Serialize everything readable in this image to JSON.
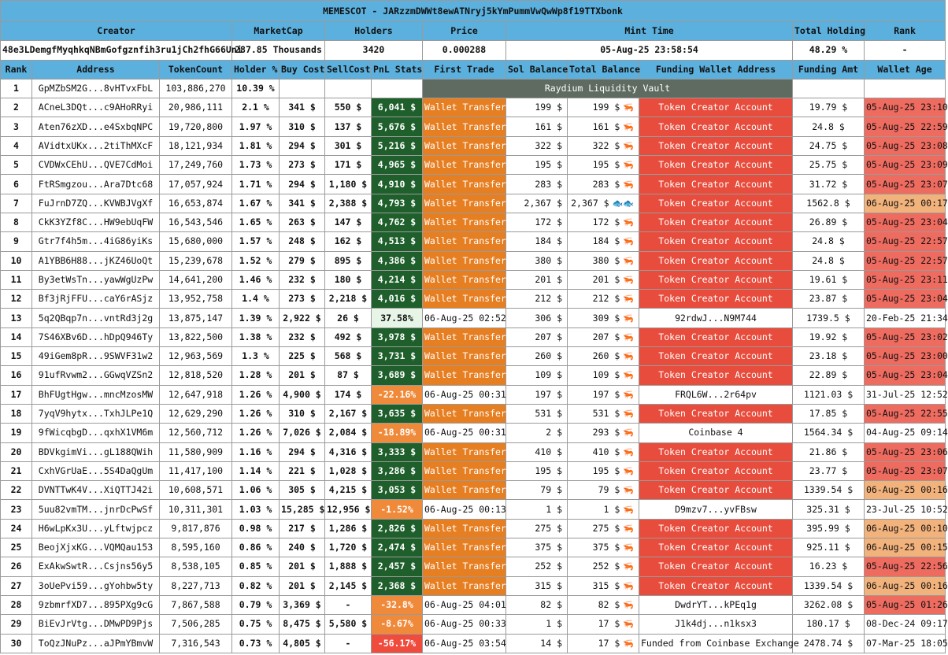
{
  "title": "MEMESCOT - JARzzmDWWt8ewATNryj5kYmPummVwQwWp8f19TTXbonk",
  "summary_headers": {
    "creator": "Creator",
    "marketcap": "MarketCap",
    "holders": "Holders",
    "price": "Price",
    "mint_time": "Mint Time",
    "total_holding": "Total Holding",
    "rank": "Rank"
  },
  "summary": {
    "creator": "48e3LDemgfMyqhkqNBmGofgznfih3ru1jCh2fhG66Uni",
    "marketcap": "287.85 Thousands",
    "holders": "3420",
    "price": "0.000288",
    "mint_time": "05-Aug-25 23:58:54",
    "total_holding": "48.29 %",
    "rank": "-"
  },
  "columns": [
    "Rank",
    "Address",
    "TokenCount",
    "Holder %",
    "Buy Cost",
    "SellCost",
    "PnL Stats",
    "First Trade",
    "Sol Balance",
    "Total Balance",
    "Funding Wallet Address",
    "Funding Amt",
    "Wallet Age"
  ],
  "vault_label": "Raydium Liquidity Vault",
  "icons": {
    "shrimp": "shrimp-icon",
    "fish": "fish-icon"
  },
  "colors": {
    "header": "#5bb0dd",
    "pnl_positive": "#1e5f2b",
    "pnl_negative": "#f08a3b",
    "wallet_transfer": "#e67e22",
    "token_creator": "#e74c3c",
    "age_recent": "#ee6b60",
    "age_next_day": "#f2b27c",
    "vault": "#5f6b61"
  },
  "rows": [
    {
      "rank": "1",
      "address": "GpMZbSM2G...8vHTvxFbL",
      "tokens": "103,886,270",
      "holder": "10.39 %",
      "vault": true
    },
    {
      "rank": "2",
      "address": "ACneL3DQt...c9AHoRRyi",
      "tokens": "20,986,111",
      "holder": "2.1 %",
      "buy": "341 $",
      "sell": "550 $",
      "pnl": "6,041 $",
      "pnl_style": "pos",
      "first": "Wallet Transfer",
      "sol": "199 $",
      "total": "199 $",
      "icon": "shrimp",
      "funding": "Token Creator Account",
      "funding_style": "tca",
      "amt": "19.79 $",
      "age": "05-Aug-25 23:10",
      "age_style": "red"
    },
    {
      "rank": "3",
      "address": "Aten76zXD...e4SxbqNPC",
      "tokens": "19,720,800",
      "holder": "1.97 %",
      "buy": "310 $",
      "sell": "137 $",
      "pnl": "5,676 $",
      "pnl_style": "pos",
      "first": "Wallet Transfer",
      "sol": "161 $",
      "total": "161 $",
      "icon": "shrimp",
      "funding": "Token Creator Account",
      "funding_style": "tca",
      "amt": "24.8 $",
      "age": "05-Aug-25 22:59",
      "age_style": "red"
    },
    {
      "rank": "4",
      "address": "AVidtxUKx...2tiThMXcF",
      "tokens": "18,121,934",
      "holder": "1.81 %",
      "buy": "294 $",
      "sell": "301 $",
      "pnl": "5,216 $",
      "pnl_style": "pos",
      "first": "Wallet Transfer",
      "sol": "322 $",
      "total": "322 $",
      "icon": "shrimp",
      "funding": "Token Creator Account",
      "funding_style": "tca",
      "amt": "24.75 $",
      "age": "05-Aug-25 23:08",
      "age_style": "red"
    },
    {
      "rank": "5",
      "address": "CVDWxCEhU...QVE7CdMoi",
      "tokens": "17,249,760",
      "holder": "1.73 %",
      "buy": "273 $",
      "sell": "171 $",
      "pnl": "4,965 $",
      "pnl_style": "pos",
      "first": "Wallet Transfer",
      "sol": "195 $",
      "total": "195 $",
      "icon": "shrimp",
      "funding": "Token Creator Account",
      "funding_style": "tca",
      "amt": "25.75 $",
      "age": "05-Aug-25 23:09",
      "age_style": "red"
    },
    {
      "rank": "6",
      "address": "FtRSmgzou...Ara7Dtc68",
      "tokens": "17,057,924",
      "holder": "1.71 %",
      "buy": "294 $",
      "sell": "1,180 $",
      "pnl": "4,910 $",
      "pnl_style": "pos",
      "first": "Wallet Transfer",
      "sol": "283 $",
      "total": "283 $",
      "icon": "shrimp",
      "funding": "Token Creator Account",
      "funding_style": "tca",
      "amt": "31.72 $",
      "age": "05-Aug-25 23:07",
      "age_style": "red"
    },
    {
      "rank": "7",
      "address": "FuJrnD7ZQ...KVWBJVgXf",
      "tokens": "16,653,874",
      "holder": "1.67 %",
      "buy": "341 $",
      "sell": "2,388 $",
      "pnl": "4,793 $",
      "pnl_style": "pos",
      "first": "Wallet Transfer",
      "sol": "2,367 $",
      "total": "2,367 $",
      "icon": "fish",
      "funding": "Token Creator Account",
      "funding_style": "tca",
      "amt": "1562.8 $",
      "age": "06-Aug-25 00:17",
      "age_style": "orange"
    },
    {
      "rank": "8",
      "address": "CkK3YZf8C...HW9ebUqFW",
      "tokens": "16,543,546",
      "holder": "1.65 %",
      "buy": "263 $",
      "sell": "147 $",
      "pnl": "4,762 $",
      "pnl_style": "pos",
      "first": "Wallet Transfer",
      "sol": "172 $",
      "total": "172 $",
      "icon": "shrimp",
      "funding": "Token Creator Account",
      "funding_style": "tca",
      "amt": "26.89 $",
      "age": "05-Aug-25 23:04",
      "age_style": "red"
    },
    {
      "rank": "9",
      "address": "Gtr7f4h5m...4iG86yiKs",
      "tokens": "15,680,000",
      "holder": "1.57 %",
      "buy": "248 $",
      "sell": "162 $",
      "pnl": "4,513 $",
      "pnl_style": "pos",
      "first": "Wallet Transfer",
      "sol": "184 $",
      "total": "184 $",
      "icon": "shrimp",
      "funding": "Token Creator Account",
      "funding_style": "tca",
      "amt": "24.8 $",
      "age": "05-Aug-25 22:57",
      "age_style": "red"
    },
    {
      "rank": "10",
      "address": "A1YBB6H88...jKZ46UoQt",
      "tokens": "15,239,678",
      "holder": "1.52 %",
      "buy": "279 $",
      "sell": "895 $",
      "pnl": "4,386 $",
      "pnl_style": "pos",
      "first": "Wallet Transfer",
      "sol": "380 $",
      "total": "380 $",
      "icon": "shrimp",
      "funding": "Token Creator Account",
      "funding_style": "tca",
      "amt": "24.8 $",
      "age": "05-Aug-25 22:57",
      "age_style": "red"
    },
    {
      "rank": "11",
      "address": "By3etWsTn...yawWgUzPw",
      "tokens": "14,641,200",
      "holder": "1.46 %",
      "buy": "232 $",
      "sell": "180 $",
      "pnl": "4,214 $",
      "pnl_style": "pos",
      "first": "Wallet Transfer",
      "sol": "201 $",
      "total": "201 $",
      "icon": "shrimp",
      "funding": "Token Creator Account",
      "funding_style": "tca",
      "amt": "19.61 $",
      "age": "05-Aug-25 23:11",
      "age_style": "red"
    },
    {
      "rank": "12",
      "address": "Bf3jRjFFU...caY6rASjz",
      "tokens": "13,952,758",
      "holder": "1.4 %",
      "buy": "273 $",
      "sell": "2,218 $",
      "pnl": "4,016 $",
      "pnl_style": "pos",
      "first": "Wallet Transfer",
      "sol": "212 $",
      "total": "212 $",
      "icon": "shrimp",
      "funding": "Token Creator Account",
      "funding_style": "tca",
      "amt": "23.87 $",
      "age": "05-Aug-25 23:04",
      "age_style": "red"
    },
    {
      "rank": "13",
      "address": "5q2QBqp7n...vntRd3j2g",
      "tokens": "13,875,147",
      "holder": "1.39 %",
      "buy": "2,922 $",
      "sell": "26 $",
      "pnl": "37.58%",
      "pnl_style": "soft",
      "first": "06-Aug-25 02:52",
      "first_plain": true,
      "sol": "306 $",
      "total": "309 $",
      "icon": "shrimp",
      "funding": "92rdwJ...N9M744",
      "funding_style": "plain",
      "amt": "1739.5 $",
      "age": "20-Feb-25 21:34",
      "age_style": "none"
    },
    {
      "rank": "14",
      "address": "7S46XBv6D...hDpQ946Ty",
      "tokens": "13,822,500",
      "holder": "1.38 %",
      "buy": "232 $",
      "sell": "492 $",
      "pnl": "3,978 $",
      "pnl_style": "pos",
      "first": "Wallet Transfer",
      "sol": "207 $",
      "total": "207 $",
      "icon": "shrimp",
      "funding": "Token Creator Account",
      "funding_style": "tca",
      "amt": "19.92 $",
      "age": "05-Aug-25 23:02",
      "age_style": "red"
    },
    {
      "rank": "15",
      "address": "49iGem8pR...9SWVF31w2",
      "tokens": "12,963,569",
      "holder": "1.3 %",
      "buy": "225 $",
      "sell": "568 $",
      "pnl": "3,731 $",
      "pnl_style": "pos",
      "first": "Wallet Transfer",
      "sol": "260 $",
      "total": "260 $",
      "icon": "shrimp",
      "funding": "Token Creator Account",
      "funding_style": "tca",
      "amt": "23.18 $",
      "age": "05-Aug-25 23:00",
      "age_style": "red"
    },
    {
      "rank": "16",
      "address": "91ufRvwm2...GGwqVZSn2",
      "tokens": "12,818,520",
      "holder": "1.28 %",
      "buy": "201 $",
      "sell": "87 $",
      "pnl": "3,689 $",
      "pnl_style": "pos",
      "first": "Wallet Transfer",
      "sol": "109 $",
      "total": "109 $",
      "icon": "shrimp",
      "funding": "Token Creator Account",
      "funding_style": "tca",
      "amt": "22.89 $",
      "age": "05-Aug-25 23:04",
      "age_style": "red"
    },
    {
      "rank": "17",
      "address": "BhFUgtHgw...mncMzosMW",
      "tokens": "12,647,918",
      "holder": "1.26 %",
      "buy": "4,900 $",
      "sell": "174 $",
      "pnl": "-22.16%",
      "pnl_style": "neg",
      "first": "06-Aug-25 00:31",
      "first_plain": true,
      "sol": "197 $",
      "total": "197 $",
      "icon": "shrimp",
      "funding": "FRQL6W...2r64pv",
      "funding_style": "plain",
      "amt": "1121.03 $",
      "age": "31-Jul-25 12:52",
      "age_style": "none"
    },
    {
      "rank": "18",
      "address": "7yqV9hytx...TxhJLPe1Q",
      "tokens": "12,629,290",
      "holder": "1.26 %",
      "buy": "310 $",
      "sell": "2,167 $",
      "pnl": "3,635 $",
      "pnl_style": "pos",
      "first": "Wallet Transfer",
      "sol": "531 $",
      "total": "531 $",
      "icon": "shrimp",
      "funding": "Token Creator Account",
      "funding_style": "tca",
      "amt": "17.85 $",
      "age": "05-Aug-25 22:55",
      "age_style": "red"
    },
    {
      "rank": "19",
      "address": "9fWicqbgD...qxhX1VM6m",
      "tokens": "12,560,712",
      "holder": "1.26 %",
      "buy": "7,026 $",
      "sell": "2,084 $",
      "pnl": "-18.89%",
      "pnl_style": "neg",
      "first": "06-Aug-25 00:31",
      "first_plain": true,
      "sol": "2 $",
      "total": "293 $",
      "icon": "shrimp",
      "funding": "Coinbase 4",
      "funding_style": "plain",
      "amt": "1564.34 $",
      "age": "04-Aug-25 09:14",
      "age_style": "none"
    },
    {
      "rank": "20",
      "address": "BDVkgimVi...gL188QWih",
      "tokens": "11,580,909",
      "holder": "1.16 %",
      "buy": "294 $",
      "sell": "4,316 $",
      "pnl": "3,333 $",
      "pnl_style": "pos",
      "first": "Wallet Transfer",
      "sol": "410 $",
      "total": "410 $",
      "icon": "shrimp",
      "funding": "Token Creator Account",
      "funding_style": "tca",
      "amt": "21.86 $",
      "age": "05-Aug-25 23:06",
      "age_style": "red"
    },
    {
      "rank": "21",
      "address": "CxhVGrUaE...5S4DaQgUm",
      "tokens": "11,417,100",
      "holder": "1.14 %",
      "buy": "221 $",
      "sell": "1,028 $",
      "pnl": "3,286 $",
      "pnl_style": "pos",
      "first": "Wallet Transfer",
      "sol": "195 $",
      "total": "195 $",
      "icon": "shrimp",
      "funding": "Token Creator Account",
      "funding_style": "tca",
      "amt": "23.77 $",
      "age": "05-Aug-25 23:07",
      "age_style": "red"
    },
    {
      "rank": "22",
      "address": "DVNTTwK4V...XiQTTJ42i",
      "tokens": "10,608,571",
      "holder": "1.06 %",
      "buy": "305 $",
      "sell": "4,215 $",
      "pnl": "3,053 $",
      "pnl_style": "pos",
      "first": "Wallet Transfer",
      "sol": "79 $",
      "total": "79 $",
      "icon": "shrimp",
      "funding": "Token Creator Account",
      "funding_style": "tca",
      "amt": "1339.54 $",
      "age": "06-Aug-25 00:16",
      "age_style": "orange"
    },
    {
      "rank": "23",
      "address": "5uu82vmTM...jnrDcPwSf",
      "tokens": "10,311,301",
      "holder": "1.03 %",
      "buy": "15,285 $",
      "sell": "12,956 $",
      "pnl": "-1.52%",
      "pnl_style": "neg",
      "first": "06-Aug-25 00:13",
      "first_plain": true,
      "sol": "1 $",
      "total": "1 $",
      "icon": "shrimp",
      "funding": "D9mzv7...yvFBsw",
      "funding_style": "plain",
      "amt": "325.31 $",
      "age": "23-Jul-25 10:52",
      "age_style": "none"
    },
    {
      "rank": "24",
      "address": "H6wLpKx3U...yLftwjpcz",
      "tokens": "9,817,876",
      "holder": "0.98 %",
      "buy": "217 $",
      "sell": "1,286 $",
      "pnl": "2,826 $",
      "pnl_style": "pos",
      "first": "Wallet Transfer",
      "sol": "275 $",
      "total": "275 $",
      "icon": "shrimp",
      "funding": "Token Creator Account",
      "funding_style": "tca",
      "amt": "395.99 $",
      "age": "06-Aug-25 00:10",
      "age_style": "orange"
    },
    {
      "rank": "25",
      "address": "BeojXjxKG...VQMQau153",
      "tokens": "8,595,160",
      "holder": "0.86 %",
      "buy": "240 $",
      "sell": "1,720 $",
      "pnl": "2,474 $",
      "pnl_style": "pos",
      "first": "Wallet Transfer",
      "sol": "375 $",
      "total": "375 $",
      "icon": "shrimp",
      "funding": "Token Creator Account",
      "funding_style": "tca",
      "amt": "925.11 $",
      "age": "06-Aug-25 00:15",
      "age_style": "orange"
    },
    {
      "rank": "26",
      "address": "ExAkwSwtR...Csjns56y5",
      "tokens": "8,538,105",
      "holder": "0.85 %",
      "buy": "201 $",
      "sell": "1,888 $",
      "pnl": "2,457 $",
      "pnl_style": "pos",
      "first": "Wallet Transfer",
      "sol": "252 $",
      "total": "252 $",
      "icon": "shrimp",
      "funding": "Token Creator Account",
      "funding_style": "tca",
      "amt": "16.23 $",
      "age": "05-Aug-25 22:56",
      "age_style": "red"
    },
    {
      "rank": "27",
      "address": "3oUePvi59...gYohbw5ty",
      "tokens": "8,227,713",
      "holder": "0.82 %",
      "buy": "201 $",
      "sell": "2,145 $",
      "pnl": "2,368 $",
      "pnl_style": "pos",
      "first": "Wallet Transfer",
      "sol": "315 $",
      "total": "315 $",
      "icon": "shrimp",
      "funding": "Token Creator Account",
      "funding_style": "tca",
      "amt": "1339.54 $",
      "age": "06-Aug-25 00:16",
      "age_style": "orange"
    },
    {
      "rank": "28",
      "address": "9zbmrfXD7...895PXg9cG",
      "tokens": "7,867,588",
      "holder": "0.79 %",
      "buy": "3,369 $",
      "sell": "-",
      "pnl": "-32.8%",
      "pnl_style": "neg",
      "first": "06-Aug-25 04:01",
      "first_plain": true,
      "sol": "82 $",
      "total": "82 $",
      "icon": "shrimp",
      "funding": "DwdrYT...kPEq1g",
      "funding_style": "plain",
      "amt": "3262.08 $",
      "age": "05-Aug-25 01:26",
      "age_style": "red"
    },
    {
      "rank": "29",
      "address": "BiEvJrVtg...DMwPD9Pjs",
      "tokens": "7,506,285",
      "holder": "0.75 %",
      "buy": "8,475 $",
      "sell": "5,580 $",
      "pnl": "-8.67%",
      "pnl_style": "neg",
      "first": "06-Aug-25 00:33",
      "first_plain": true,
      "sol": "1 $",
      "total": "17 $",
      "icon": "shrimp",
      "funding": "J1k4dj...n1ksx3",
      "funding_style": "plain",
      "amt": "180.17 $",
      "age": "08-Dec-24 09:17",
      "age_style": "none"
    },
    {
      "rank": "30",
      "address": "ToQzJNuPz...aJPmYBmvW",
      "tokens": "7,316,543",
      "holder": "0.73 %",
      "buy": "4,805 $",
      "sell": "-",
      "pnl": "-56.17%",
      "pnl_style": "red",
      "first": "06-Aug-25 03:54",
      "first_plain": true,
      "sol": "14 $",
      "total": "17 $",
      "icon": "shrimp",
      "funding": "Funded from Coinbase Exchange",
      "funding_style": "plain",
      "amt": "2478.74 $",
      "age": "07-Mar-25 18:05",
      "age_style": "none"
    }
  ]
}
